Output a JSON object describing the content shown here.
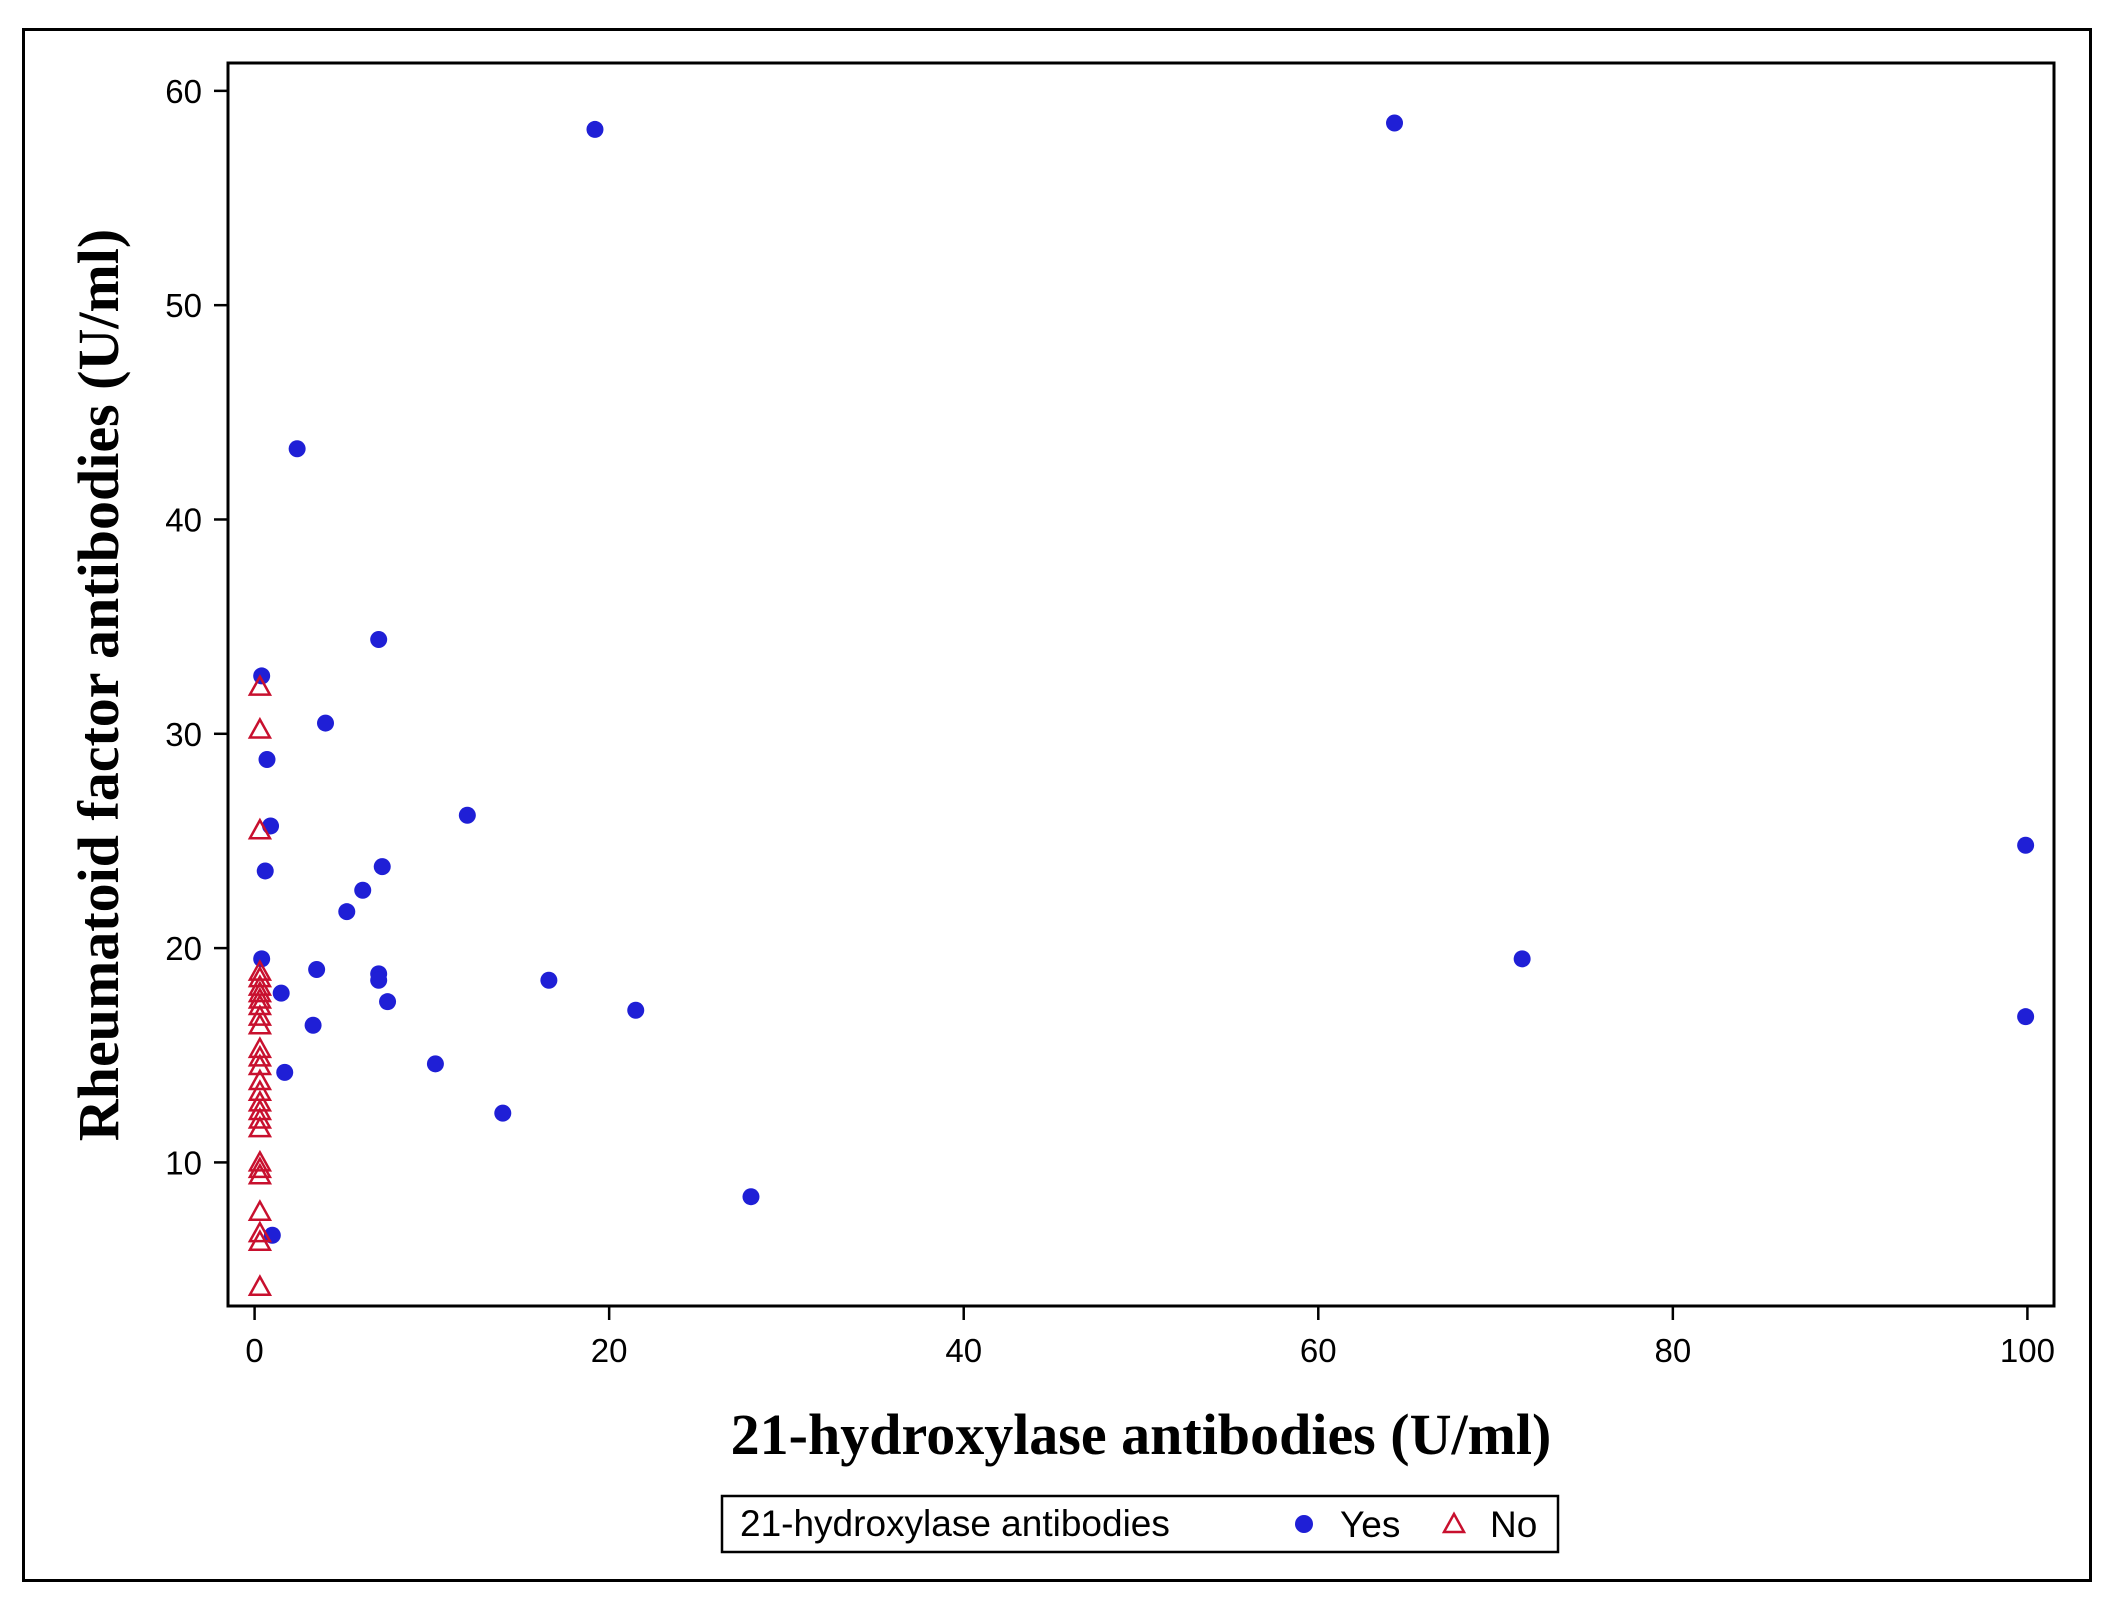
{
  "chart_data": {
    "type": "scatter",
    "xlabel": "21-hydroxylase antibodies (U/ml)",
    "ylabel": "Rheumatoid factor antibodies (U/ml)",
    "xlim": [
      -1.5,
      101.5
    ],
    "ylim": [
      3.3,
      61.3
    ],
    "xticks": [
      0,
      20,
      40,
      60,
      80,
      100
    ],
    "yticks": [
      10,
      20,
      30,
      40,
      50,
      60
    ],
    "grid": false,
    "legend": {
      "title": "21-hydroxylase antibodies",
      "placement": "bottom-center",
      "entries": [
        "Yes",
        "No"
      ]
    },
    "series": [
      {
        "name": "Yes",
        "marker": "filled-circle",
        "color": "#1f1fd6",
        "points": [
          [
            19.2,
            58.2
          ],
          [
            64.3,
            58.5
          ],
          [
            2.4,
            43.3
          ],
          [
            7.0,
            34.4
          ],
          [
            0.4,
            32.7
          ],
          [
            4.0,
            30.5
          ],
          [
            0.7,
            28.8
          ],
          [
            0.9,
            25.7
          ],
          [
            12.0,
            26.2
          ],
          [
            0.6,
            23.6
          ],
          [
            7.2,
            23.8
          ],
          [
            6.1,
            22.7
          ],
          [
            5.2,
            21.7
          ],
          [
            99.9,
            24.8
          ],
          [
            71.5,
            19.5
          ],
          [
            0.4,
            19.5
          ],
          [
            3.5,
            19.0
          ],
          [
            7.0,
            18.8
          ],
          [
            7.0,
            18.5
          ],
          [
            16.6,
            18.5
          ],
          [
            1.5,
            17.9
          ],
          [
            7.5,
            17.5
          ],
          [
            21.5,
            17.1
          ],
          [
            99.9,
            16.8
          ],
          [
            3.3,
            16.4
          ],
          [
            10.2,
            14.6
          ],
          [
            1.7,
            14.2
          ],
          [
            14.0,
            12.3
          ],
          [
            28.0,
            8.4
          ],
          [
            1.0,
            6.6
          ]
        ]
      },
      {
        "name": "No",
        "marker": "open-triangle",
        "color": "#c8102e",
        "points": [
          [
            0.3,
            32.2
          ],
          [
            0.3,
            30.2
          ],
          [
            0.3,
            25.5
          ],
          [
            0.3,
            18.9
          ],
          [
            0.3,
            18.6
          ],
          [
            0.3,
            18.2
          ],
          [
            0.3,
            17.9
          ],
          [
            0.3,
            17.6
          ],
          [
            0.3,
            17.3
          ],
          [
            0.3,
            16.8
          ],
          [
            0.3,
            16.4
          ],
          [
            0.3,
            15.3
          ],
          [
            0.3,
            14.9
          ],
          [
            0.3,
            14.5
          ],
          [
            0.3,
            13.8
          ],
          [
            0.3,
            13.3
          ],
          [
            0.3,
            12.8
          ],
          [
            0.3,
            12.4
          ],
          [
            0.3,
            12.0
          ],
          [
            0.3,
            11.6
          ],
          [
            0.3,
            10.0
          ],
          [
            0.3,
            9.7
          ],
          [
            0.3,
            9.4
          ],
          [
            0.3,
            7.7
          ],
          [
            0.3,
            6.7
          ],
          [
            0.3,
            6.3
          ],
          [
            0.3,
            4.2
          ]
        ]
      }
    ]
  }
}
